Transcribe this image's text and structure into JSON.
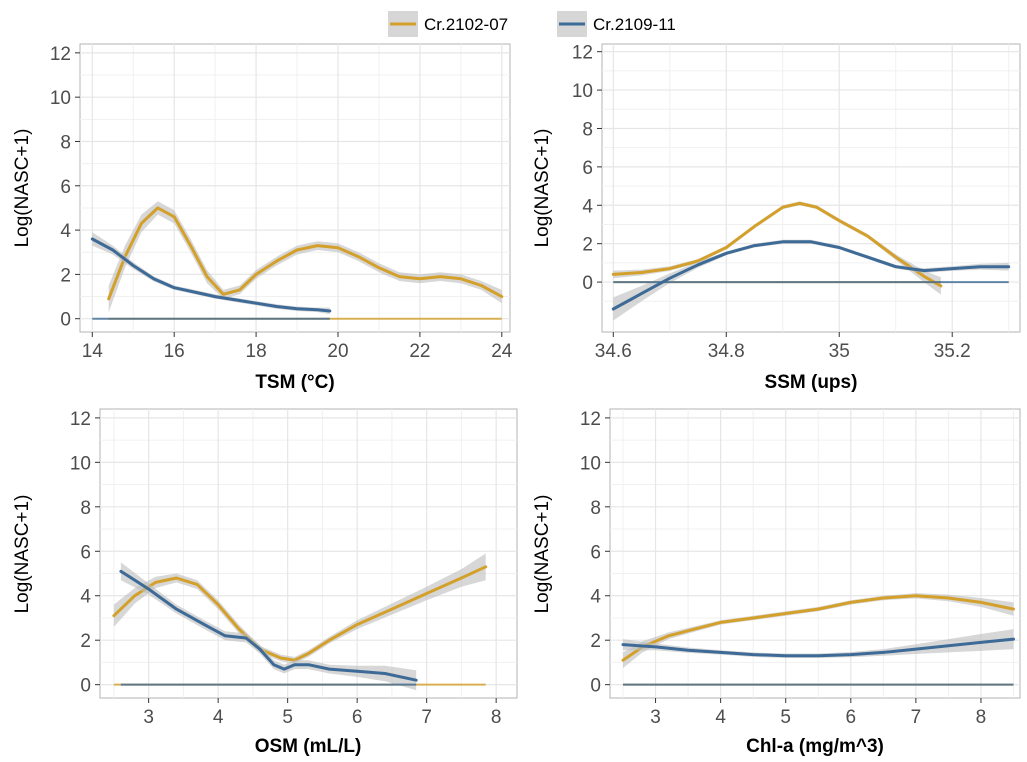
{
  "legend": {
    "position": "top-center",
    "entries": [
      {
        "label": "Cr.2102-07",
        "color": "#d4a02c"
      },
      {
        "label": "Cr.2109-11",
        "color": "#3d6a96"
      }
    ]
  },
  "colors": {
    "grid": "#e6e6e6",
    "band": "#bdbdbd",
    "panel_background": "#ffffff",
    "panel_border": "#b3b3b3"
  },
  "chart_data": [
    {
      "type": "line",
      "title": "",
      "xlabel": "TSM (°C)",
      "ylabel": "Log(NASC+1)",
      "xlim": [
        13.7,
        24.2
      ],
      "ylim": [
        -0.6,
        12.4
      ],
      "xticks": [
        14,
        16,
        18,
        20,
        22,
        24
      ],
      "yticks": [
        0,
        2,
        4,
        6,
        8,
        10,
        12
      ],
      "grid": true,
      "series": [
        {
          "name": "Cr.2102-07",
          "color": "#d4a02c",
          "x": [
            14.4,
            14.8,
            15.2,
            15.6,
            16.0,
            16.4,
            16.8,
            17.2,
            17.6,
            18.0,
            18.5,
            19.0,
            19.5,
            20.0,
            20.5,
            21.0,
            21.5,
            22.0,
            22.5,
            23.0,
            23.5,
            24.0
          ],
          "y": [
            0.9,
            2.8,
            4.3,
            5.0,
            4.6,
            3.3,
            1.9,
            1.1,
            1.3,
            2.0,
            2.6,
            3.1,
            3.3,
            3.2,
            2.8,
            2.3,
            1.9,
            1.8,
            1.9,
            1.8,
            1.5,
            1.0
          ],
          "band": [
            0.6,
            0.5,
            0.4,
            0.3,
            0.3,
            0.3,
            0.3,
            0.2,
            0.2,
            0.2,
            0.2,
            0.2,
            0.2,
            0.2,
            0.2,
            0.2,
            0.2,
            0.2,
            0.2,
            0.2,
            0.2,
            0.3
          ]
        },
        {
          "name": "Cr.2109-11",
          "color": "#3d6a96",
          "x": [
            14.0,
            14.5,
            15.0,
            15.5,
            16.0,
            16.5,
            17.0,
            17.5,
            18.0,
            18.5,
            19.0,
            19.5,
            19.8
          ],
          "y": [
            3.6,
            3.1,
            2.4,
            1.8,
            1.4,
            1.2,
            1.0,
            0.85,
            0.7,
            0.55,
            0.45,
            0.4,
            0.35
          ],
          "band": [
            0.3,
            0.2,
            0.15,
            0.12,
            0.1,
            0.1,
            0.1,
            0.1,
            0.1,
            0.1,
            0.1,
            0.1,
            0.15
          ]
        }
      ]
    },
    {
      "type": "line",
      "title": "",
      "xlabel": "SSM (ups)",
      "ylabel": "Log(NASC+1)",
      "xlim": [
        34.58,
        35.32
      ],
      "ylim": [
        -2.6,
        12.4
      ],
      "xticks": [
        34.6,
        34.8,
        35.0,
        35.2
      ],
      "yticks": [
        0,
        2,
        4,
        6,
        8,
        10,
        12
      ],
      "grid": true,
      "series": [
        {
          "name": "Cr.2102-07",
          "color": "#d4a02c",
          "x": [
            34.6,
            34.65,
            34.7,
            34.75,
            34.8,
            34.85,
            34.9,
            34.93,
            34.96,
            35.0,
            35.05,
            35.1,
            35.15,
            35.18
          ],
          "y": [
            0.4,
            0.5,
            0.7,
            1.1,
            1.8,
            2.9,
            3.9,
            4.1,
            3.9,
            3.2,
            2.4,
            1.3,
            0.3,
            -0.2
          ],
          "band": [
            0.2,
            0.15,
            0.12,
            0.1,
            0.1,
            0.1,
            0.1,
            0.1,
            0.1,
            0.1,
            0.1,
            0.15,
            0.3,
            0.45
          ]
        },
        {
          "name": "Cr.2109-11",
          "color": "#3d6a96",
          "x": [
            34.6,
            34.65,
            34.7,
            34.75,
            34.8,
            34.85,
            34.9,
            34.95,
            35.0,
            35.05,
            35.1,
            35.15,
            35.2,
            35.25,
            35.3
          ],
          "y": [
            -1.4,
            -0.6,
            0.2,
            0.9,
            1.5,
            1.9,
            2.1,
            2.1,
            1.8,
            1.3,
            0.8,
            0.6,
            0.7,
            0.8,
            0.8
          ],
          "band": [
            0.6,
            0.4,
            0.25,
            0.15,
            0.1,
            0.1,
            0.1,
            0.1,
            0.1,
            0.1,
            0.1,
            0.12,
            0.12,
            0.15,
            0.2
          ]
        }
      ]
    },
    {
      "type": "line",
      "title": "",
      "xlabel": "OSM (mL/L)",
      "ylabel": "Log(NASC+1)",
      "xlim": [
        2.3,
        8.3
      ],
      "ylim": [
        -0.6,
        12.4
      ],
      "xticks": [
        3,
        4,
        5,
        6,
        7,
        8
      ],
      "yticks": [
        0,
        2,
        4,
        6,
        8,
        10,
        12
      ],
      "grid": true,
      "series": [
        {
          "name": "Cr.2102-07",
          "color": "#d4a02c",
          "x": [
            2.5,
            2.8,
            3.1,
            3.4,
            3.7,
            4.0,
            4.3,
            4.6,
            4.9,
            5.1,
            5.3,
            5.6,
            6.0,
            6.5,
            7.0,
            7.5,
            7.85
          ],
          "y": [
            3.1,
            4.0,
            4.6,
            4.8,
            4.5,
            3.6,
            2.5,
            1.6,
            1.2,
            1.1,
            1.4,
            2.0,
            2.7,
            3.4,
            4.1,
            4.8,
            5.3
          ],
          "band": [
            0.5,
            0.35,
            0.25,
            0.2,
            0.2,
            0.2,
            0.2,
            0.15,
            0.15,
            0.15,
            0.15,
            0.15,
            0.2,
            0.25,
            0.3,
            0.4,
            0.6
          ]
        },
        {
          "name": "Cr.2109-11",
          "color": "#3d6a96",
          "x": [
            2.6,
            3.0,
            3.4,
            3.8,
            4.1,
            4.4,
            4.6,
            4.8,
            4.95,
            5.1,
            5.3,
            5.6,
            6.0,
            6.4,
            6.85
          ],
          "y": [
            5.1,
            4.3,
            3.4,
            2.7,
            2.2,
            2.1,
            1.6,
            0.9,
            0.7,
            0.9,
            0.9,
            0.7,
            0.6,
            0.5,
            0.2
          ],
          "band": [
            0.4,
            0.25,
            0.2,
            0.2,
            0.2,
            0.2,
            0.2,
            0.2,
            0.2,
            0.2,
            0.2,
            0.2,
            0.25,
            0.35,
            0.45
          ]
        }
      ]
    },
    {
      "type": "line",
      "title": "",
      "xlabel": "Chl-a (mg/m^3)",
      "ylabel": "Log(NASC+1)",
      "xlim": [
        2.3,
        8.6
      ],
      "ylim": [
        -0.6,
        12.4
      ],
      "xticks": [
        3,
        4,
        5,
        6,
        7,
        8
      ],
      "yticks": [
        0,
        2,
        4,
        6,
        8,
        10,
        12
      ],
      "grid": true,
      "series": [
        {
          "name": "Cr.2102-07",
          "color": "#d4a02c",
          "x": [
            2.5,
            2.8,
            3.2,
            3.6,
            4.0,
            4.5,
            5.0,
            5.5,
            6.0,
            6.5,
            7.0,
            7.5,
            8.0,
            8.5
          ],
          "y": [
            1.1,
            1.7,
            2.2,
            2.5,
            2.8,
            3.0,
            3.2,
            3.4,
            3.7,
            3.9,
            4.0,
            3.9,
            3.7,
            3.4
          ],
          "band": [
            0.35,
            0.25,
            0.15,
            0.12,
            0.1,
            0.1,
            0.1,
            0.1,
            0.1,
            0.1,
            0.12,
            0.15,
            0.2,
            0.3
          ]
        },
        {
          "name": "Cr.2109-11",
          "color": "#3d6a96",
          "x": [
            2.5,
            3.0,
            3.5,
            4.0,
            4.5,
            5.0,
            5.5,
            6.0,
            6.5,
            7.0,
            7.5,
            8.0,
            8.5
          ],
          "y": [
            1.8,
            1.7,
            1.55,
            1.45,
            1.35,
            1.3,
            1.3,
            1.35,
            1.45,
            1.6,
            1.75,
            1.9,
            2.05
          ],
          "band": [
            0.25,
            0.15,
            0.12,
            0.1,
            0.1,
            0.1,
            0.1,
            0.12,
            0.15,
            0.22,
            0.3,
            0.38,
            0.45
          ]
        }
      ]
    }
  ]
}
